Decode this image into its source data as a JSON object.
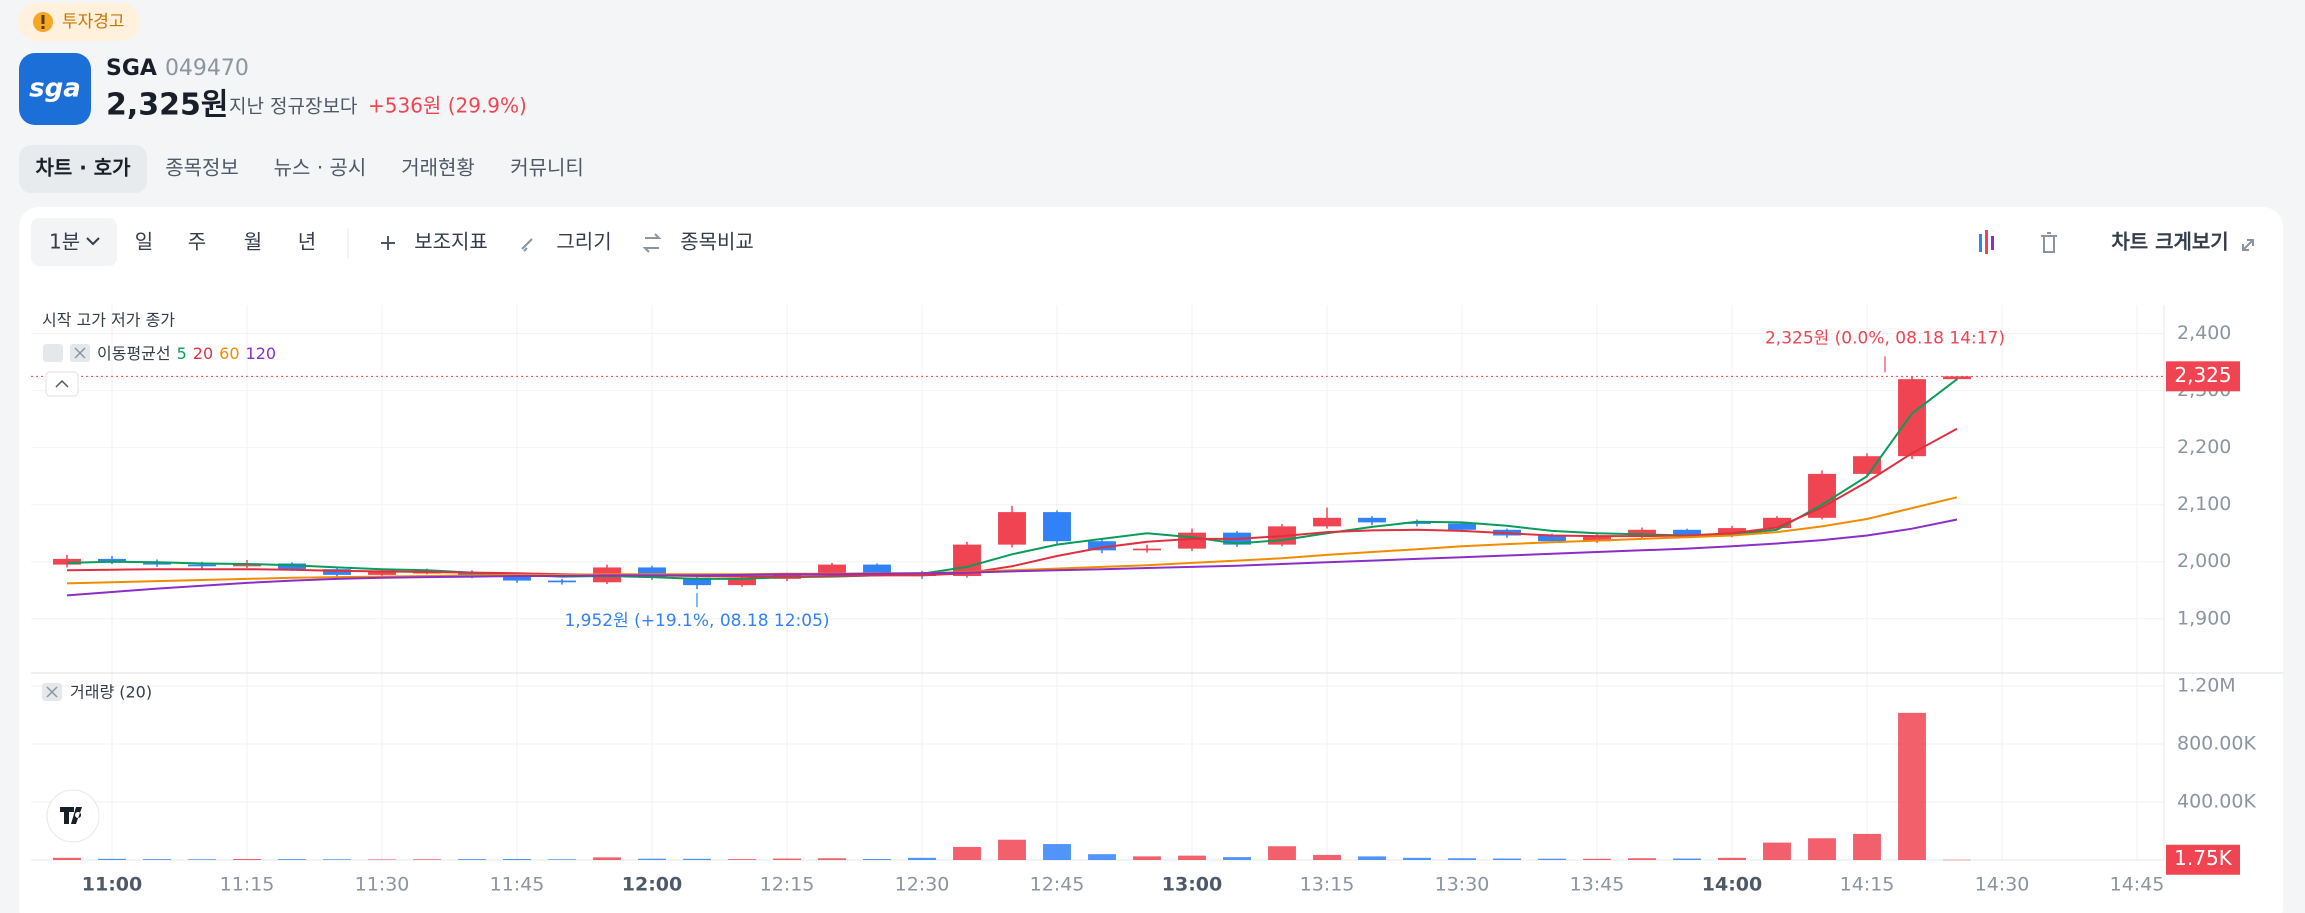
{
  "header": {
    "badge": "투자경고",
    "logo": "sga",
    "name": "SGA",
    "code": "049470",
    "price": "2,325원",
    "compare_label": "지난 정규장보다",
    "change": "+536원 (29.9%)"
  },
  "tabs": [
    "차트 · 호가",
    "종목정보",
    "뉴스 · 공시",
    "거래현황",
    "커뮤니티"
  ],
  "toolbar": {
    "interval": "1분",
    "periods": [
      "일",
      "주",
      "월",
      "년"
    ],
    "tools": [
      "보조지표",
      "그리기",
      "종목비교"
    ],
    "expand": "차트 크게보기"
  },
  "chart_data": {
    "type": "candlestick",
    "ohlc_label": "시작 고가 저가 종가",
    "ma_label": "이동평균선",
    "up_color": "#f04452",
    "down_color": "#3182f6",
    "x": [
      655,
      660,
      665,
      670,
      675,
      680,
      685,
      690,
      695,
      700,
      705,
      710,
      715,
      720,
      725,
      730,
      735,
      740,
      745,
      750,
      755,
      760,
      765,
      770,
      775,
      780,
      785,
      790,
      795,
      800,
      805,
      810,
      815,
      820,
      825,
      830,
      835,
      840,
      845,
      850,
      855,
      860,
      865
    ],
    "open": [
      1995,
      2005,
      2000,
      1995,
      1992,
      1997,
      1987,
      1977,
      1982,
      1982,
      1975,
      1967,
      1964,
      1990,
      1972,
      1959,
      1970,
      1977,
      1995,
      1980,
      1975,
      2030,
      2087,
      2036,
      2020,
      2023,
      2051,
      2030,
      2062,
      2077,
      2069,
      2067,
      2056,
      2046,
      2036,
      2044,
      2056,
      2046,
      2059,
      2077,
      2154,
      2185,
      2320
    ],
    "high": [
      2012,
      2010,
      2004,
      2000,
      2003,
      1999,
      1990,
      1986,
      1988,
      1985,
      1978,
      1970,
      1995,
      1993,
      1975,
      1975,
      1981,
      1998,
      1997,
      1984,
      2035,
      2098,
      2090,
      2040,
      2030,
      2058,
      2054,
      2066,
      2095,
      2080,
      2074,
      2070,
      2058,
      2049,
      2048,
      2060,
      2058,
      2063,
      2080,
      2160,
      2190,
      2325,
      2325
    ],
    "low": [
      1990,
      1996,
      1991,
      1988,
      1989,
      1984,
      1973,
      1974,
      1978,
      1971,
      1963,
      1960,
      1961,
      1968,
      1952,
      1956,
      1966,
      1974,
      1976,
      1970,
      1972,
      2025,
      2030,
      2015,
      2016,
      2019,
      2026,
      2027,
      2058,
      2064,
      2062,
      2052,
      2042,
      2033,
      2033,
      2041,
      2043,
      2043,
      2055,
      2074,
      2150,
      2180,
      2318
    ],
    "close": [
      2005,
      2000,
      1995,
      1992,
      1997,
      1987,
      1977,
      1982,
      1982,
      1975,
      1967,
      1964,
      1990,
      1972,
      1959,
      1970,
      1977,
      1995,
      1980,
      1975,
      2030,
      2087,
      2036,
      2020,
      2023,
      2051,
      2030,
      2062,
      2077,
      2069,
      2067,
      2056,
      2046,
      2036,
      2044,
      2056,
      2046,
      2059,
      2077,
      2154,
      2185,
      2320,
      2325
    ],
    "ma": [
      {
        "name": "5",
        "color": "#0a9c5a",
        "values": [
          1998,
          2000,
          1999,
          1997,
          1996,
          1994,
          1990,
          1987,
          1985,
          1981,
          1977,
          1974,
          1975,
          1973,
          1970,
          1970,
          1973,
          1974,
          1976,
          1979,
          1991,
          2013,
          2030,
          2040,
          2050,
          2043,
          2032,
          2038,
          2050,
          2061,
          2070,
          2069,
          2063,
          2054,
          2050,
          2048,
          2046,
          2048,
          2056,
          2100,
          2150,
          2260,
          2320
        ]
      },
      {
        "name": "20",
        "color": "#e0303f",
        "values": [
          1985,
          1986,
          1987,
          1987,
          1987,
          1986,
          1984,
          1983,
          1982,
          1981,
          1980,
          1978,
          1977,
          1976,
          1975,
          1974,
          1974,
          1975,
          1976,
          1976,
          1980,
          1992,
          2010,
          2025,
          2035,
          2040,
          2040,
          2045,
          2052,
          2055,
          2056,
          2054,
          2050,
          2046,
          2045,
          2045,
          2046,
          2050,
          2060,
          2095,
          2140,
          2190,
          2233
        ]
      },
      {
        "name": "60",
        "color": "#f08c00",
        "values": [
          1962,
          1964,
          1966,
          1968,
          1970,
          1972,
          1973,
          1974,
          1975,
          1976,
          1977,
          1977,
          1978,
          1978,
          1978,
          1978,
          1979,
          1979,
          1980,
          1980,
          1982,
          1985,
          1988,
          1991,
          1994,
          1998,
          2002,
          2006,
          2012,
          2017,
          2022,
          2027,
          2031,
          2034,
          2037,
          2040,
          2043,
          2046,
          2052,
          2062,
          2075,
          2094,
          2113
        ]
      },
      {
        "name": "120",
        "color": "#8b2fc9",
        "values": [
          1941,
          1947,
          1953,
          1958,
          1963,
          1967,
          1970,
          1972,
          1973,
          1974,
          1975,
          1975,
          1976,
          1976,
          1976,
          1977,
          1978,
          1978,
          1979,
          1980,
          1981,
          1983,
          1985,
          1987,
          1989,
          1991,
          1993,
          1996,
          1999,
          2002,
          2005,
          2008,
          2011,
          2014,
          2017,
          2020,
          2023,
          2027,
          2032,
          2038,
          2046,
          2058,
          2074
        ]
      }
    ],
    "xlim": [
      651,
      888
    ],
    "xticks": [
      {
        "value": 660,
        "label": "11:00"
      },
      {
        "value": 675,
        "label": "11:15"
      },
      {
        "value": 690,
        "label": "11:30"
      },
      {
        "value": 705,
        "label": "11:45"
      },
      {
        "value": 720,
        "label": "12:00"
      },
      {
        "value": 735,
        "label": "12:15"
      },
      {
        "value": 750,
        "label": "12:30"
      },
      {
        "value": 765,
        "label": "12:45"
      },
      {
        "value": 780,
        "label": "13:00"
      },
      {
        "value": 795,
        "label": "13:15"
      },
      {
        "value": 810,
        "label": "13:30"
      },
      {
        "value": 825,
        "label": "13:45"
      },
      {
        "value": 840,
        "label": "14:00"
      },
      {
        "value": 855,
        "label": "14:15"
      },
      {
        "value": 870,
        "label": "14:30"
      },
      {
        "value": 885,
        "label": "14:45"
      }
    ],
    "ylim": [
      1805,
      2450
    ],
    "yticks": [
      {
        "value": 1900,
        "label": "1,900"
      },
      {
        "value": 2000,
        "label": "2,000"
      },
      {
        "value": 2100,
        "label": "2,100"
      },
      {
        "value": 2200,
        "label": "2,200"
      },
      {
        "value": 2300,
        "label": "2,300"
      },
      {
        "value": 2400,
        "label": "2,400"
      }
    ],
    "grid": true,
    "last_price": {
      "value": 2325,
      "label": "2,325"
    },
    "annotations": [
      {
        "text": "2,325원 (0.0%, 08.18 14:17)",
        "x": 857,
        "value": 2325,
        "color": "#f04452"
      },
      {
        "text": "1,952원 (+19.1%, 08.18 12:05)",
        "x": 725,
        "value": 1952,
        "color": "#3182f6"
      }
    ],
    "volume": {
      "label": "거래량 (20)",
      "values": [
        15000,
        8000,
        6000,
        5000,
        7000,
        6000,
        5000,
        4000,
        5000,
        6000,
        7000,
        5000,
        18000,
        9000,
        8000,
        6000,
        10000,
        12000,
        7000,
        15000,
        90000,
        140000,
        110000,
        40000,
        25000,
        30000,
        20000,
        95000,
        35000,
        25000,
        15000,
        12000,
        10000,
        9000,
        8000,
        12000,
        10000,
        15000,
        120000,
        150000,
        180000,
        1015000,
        1750
      ],
      "ylim": [
        0,
        1290000
      ],
      "yticks": [
        {
          "value": 400000,
          "label": "400.00K"
        },
        {
          "value": 800000,
          "label": "800.00K"
        },
        {
          "value": 1200000,
          "label": "1.20M"
        }
      ],
      "last": {
        "value": 1750,
        "label": "1.75K"
      }
    }
  }
}
